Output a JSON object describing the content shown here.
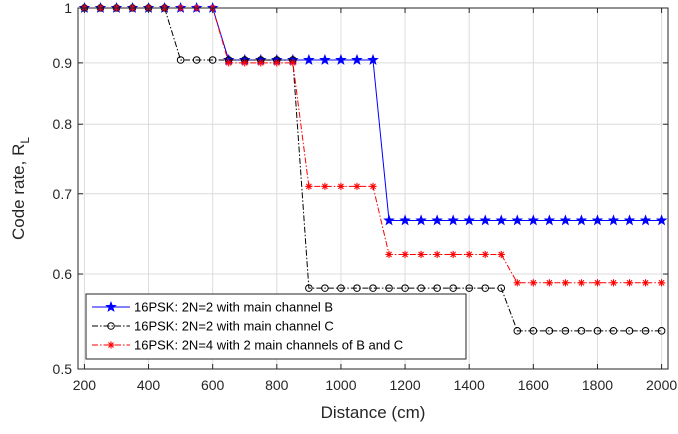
{
  "chart_data": {
    "type": "line",
    "xlabel": "Distance (cm)",
    "ylabel_main": "Code rate, R",
    "ylabel_sub": "L",
    "xlim": [
      180,
      2020
    ],
    "ylim": [
      0.5,
      1.0
    ],
    "yscale": "log",
    "grid": true,
    "legend_position": "bottom-left",
    "x_ticks": [
      200,
      400,
      600,
      800,
      1000,
      1200,
      1400,
      1600,
      1800,
      2000
    ],
    "x_tick_labels": [
      "200",
      "400",
      "600",
      "800",
      "1000",
      "1200",
      "1400",
      "1600",
      "1800",
      "2000"
    ],
    "y_ticks": [
      0.5,
      0.6,
      0.7,
      0.8,
      0.9,
      1.0
    ],
    "y_tick_labels": [
      "0.5",
      "0.6",
      "0.7",
      "0.8",
      "0.9",
      "1"
    ],
    "x": [
      200,
      250,
      300,
      350,
      400,
      450,
      500,
      550,
      600,
      650,
      700,
      750,
      800,
      850,
      900,
      950,
      1000,
      1050,
      1100,
      1150,
      1200,
      1250,
      1300,
      1350,
      1400,
      1450,
      1500,
      1550,
      1600,
      1650,
      1700,
      1750,
      1800,
      1850,
      1900,
      1950,
      2000
    ],
    "series": [
      {
        "name": "16PSK: 2N=2 with main channel B",
        "color": "#0000ff",
        "marker": "star",
        "dash": "solid",
        "values": [
          1.0,
          1.0,
          1.0,
          1.0,
          1.0,
          1.0,
          1.0,
          1.0,
          1.0,
          0.905,
          0.905,
          0.905,
          0.905,
          0.905,
          0.905,
          0.905,
          0.905,
          0.905,
          0.905,
          0.665,
          0.665,
          0.665,
          0.665,
          0.665,
          0.665,
          0.665,
          0.665,
          0.665,
          0.665,
          0.665,
          0.665,
          0.665,
          0.665,
          0.665,
          0.665,
          0.665,
          0.665
        ]
      },
      {
        "name": "16PSK: 2N=2 with main channel C",
        "color": "#000000",
        "marker": "circle",
        "dash": "dashdot",
        "values": [
          1.0,
          1.0,
          1.0,
          1.0,
          1.0,
          1.0,
          0.905,
          0.905,
          0.905,
          0.905,
          0.905,
          0.905,
          0.905,
          0.905,
          0.584,
          0.584,
          0.584,
          0.584,
          0.584,
          0.584,
          0.584,
          0.584,
          0.584,
          0.584,
          0.584,
          0.584,
          0.584,
          0.538,
          0.538,
          0.538,
          0.538,
          0.538,
          0.538,
          0.538,
          0.538,
          0.538,
          0.538
        ]
      },
      {
        "name": "16PSK: 2N=4 with 2 main channels of B and C",
        "color": "#ff0000",
        "marker": "asterisk",
        "dash": "dashdot",
        "values": [
          1.0,
          1.0,
          1.0,
          1.0,
          1.0,
          1.0,
          1.0,
          1.0,
          1.0,
          0.9,
          0.9,
          0.9,
          0.9,
          0.9,
          0.71,
          0.71,
          0.71,
          0.71,
          0.71,
          0.623,
          0.623,
          0.623,
          0.623,
          0.623,
          0.623,
          0.623,
          0.623,
          0.59,
          0.59,
          0.59,
          0.59,
          0.59,
          0.59,
          0.59,
          0.59,
          0.59,
          0.59
        ]
      }
    ]
  }
}
